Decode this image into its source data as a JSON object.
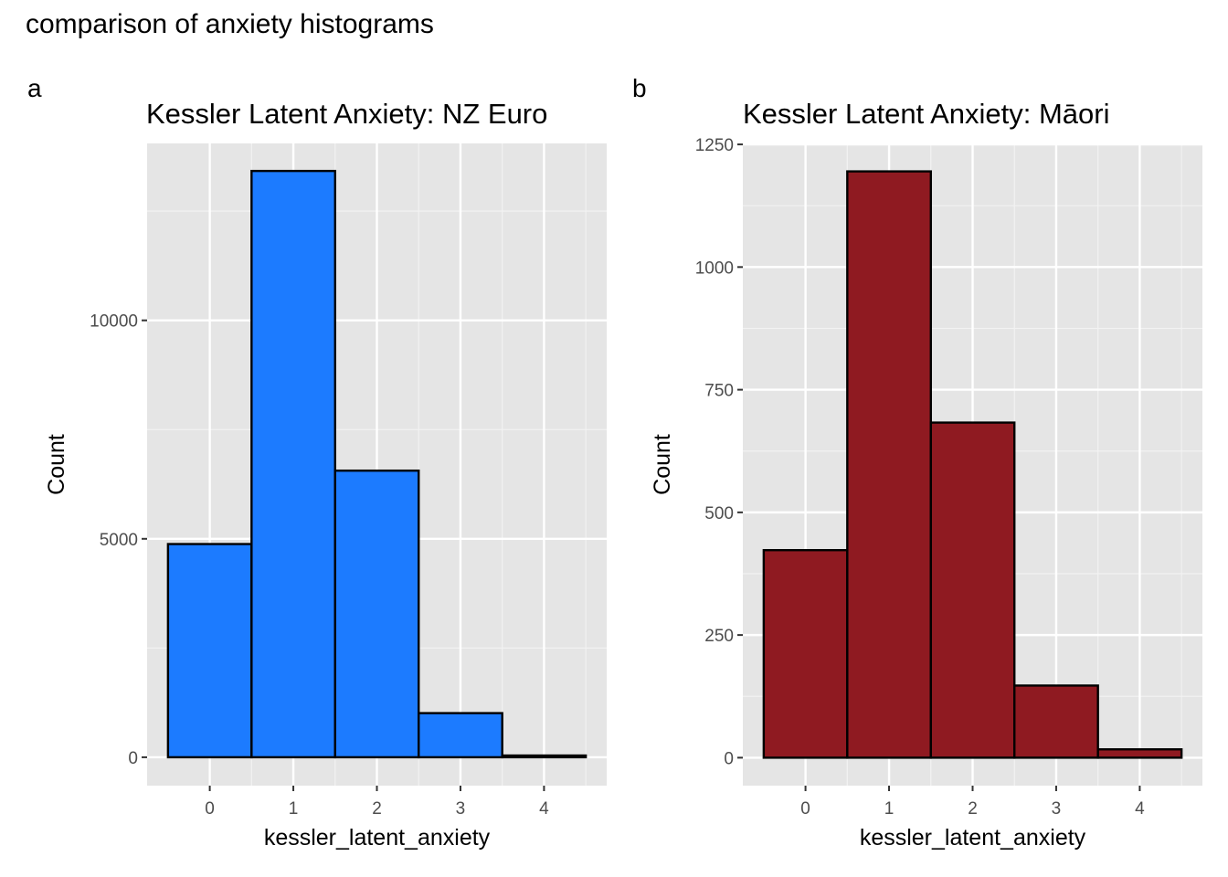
{
  "figure_title": "comparison of anxiety histograms",
  "chart_data": [
    {
      "type": "bar",
      "tag": "a",
      "title": "Kessler Latent Anxiety: NZ Euro",
      "xlabel": "kessler_latent_anxiety",
      "ylabel": "Count",
      "categories": [
        0,
        1,
        2,
        3,
        4
      ],
      "x_ticks": [
        "0",
        "1",
        "2",
        "3",
        "4"
      ],
      "values": [
        4880,
        13420,
        6560,
        1010,
        40
      ],
      "y_ticks": [
        0,
        5000,
        10000
      ],
      "y_tick_labels": [
        "0",
        "5000",
        "10000"
      ],
      "ylim": [
        -650,
        14050
      ],
      "xlim": [
        -0.75,
        4.75
      ],
      "fill": "#1c7bff",
      "outline": "#000000",
      "panel_bg": "#e5e5e5",
      "grid": true
    },
    {
      "type": "bar",
      "tag": "b",
      "title": "Kessler Latent Anxiety: Māori",
      "xlabel": "kessler_latent_anxiety",
      "ylabel": "Count",
      "categories": [
        0,
        1,
        2,
        3,
        4
      ],
      "x_ticks": [
        "0",
        "1",
        "2",
        "3",
        "4"
      ],
      "values": [
        423,
        1195,
        683,
        147,
        17
      ],
      "y_ticks": [
        0,
        250,
        500,
        750,
        1000,
        1250
      ],
      "y_tick_labels": [
        "0",
        "250",
        "500",
        "750",
        "1000",
        "1250"
      ],
      "ylim": [
        -57,
        1252
      ],
      "xlim": [
        -0.75,
        4.75
      ],
      "fill": "#8f1a21",
      "outline": "#000000",
      "panel_bg": "#e5e5e5",
      "grid": true
    }
  ]
}
